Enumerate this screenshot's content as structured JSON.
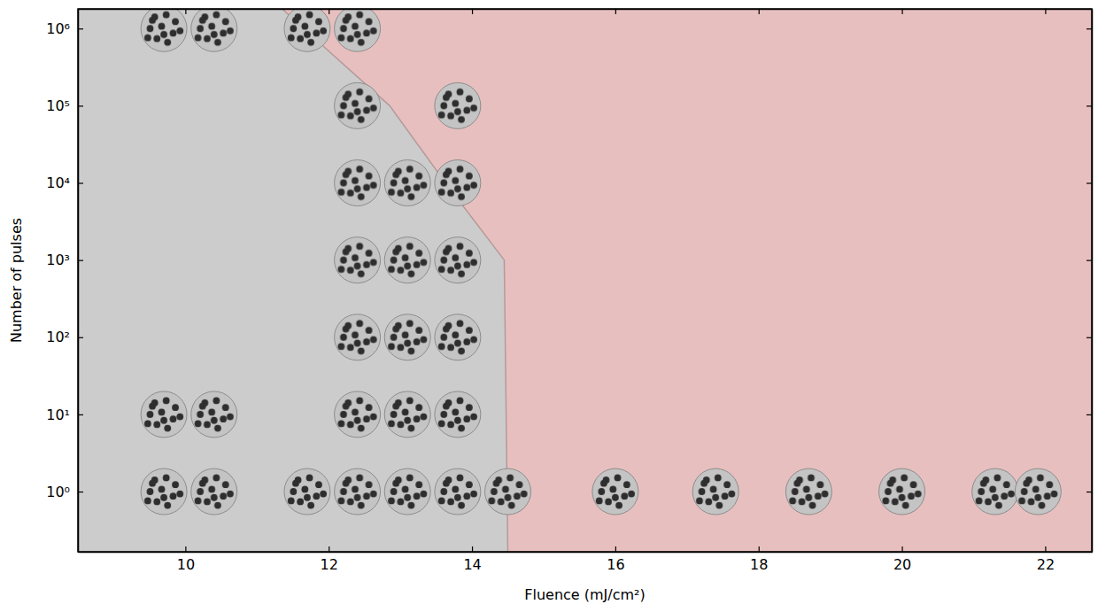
{
  "chart_data": {
    "type": "scatter",
    "color": "#e8bfbf",
    "x_label": "Fluence (mJ/cm²)",
    "y_label": "Number of pulses",
    "log": "y",
    "xlim": [
      8.5,
      22.65
    ],
    "ylim": [
      0.166,
      1800000
    ],
    "xticks": [
      10,
      12,
      14,
      16,
      18,
      20,
      22
    ],
    "yticks": [
      {
        "value": 1,
        "label": "10⁰"
      },
      {
        "value": 10,
        "label": "10¹"
      },
      {
        "value": 100,
        "label": "10²"
      },
      {
        "value": 1000,
        "label": "10³"
      },
      {
        "value": 10000,
        "label": "10⁴"
      },
      {
        "value": 100000,
        "label": "10⁵"
      },
      {
        "value": 1000000,
        "label": "10⁶"
      }
    ],
    "series": [
      {
        "type": "area",
        "color": "#cccccc",
        "x": [
          11.35,
          11.65,
          12.85,
          13.63,
          14.45,
          14.5
        ],
        "values": [
          1800000,
          1000000,
          100000,
          10000,
          1000,
          0.166
        ]
      },
      {
        "type": "scatter",
        "color": "#c4c4c4",
        "marker": "circle",
        "x": [
          9.7,
          10.4,
          11.7,
          12.4,
          12.4,
          13.8,
          12.4,
          13.1,
          13.8,
          12.4,
          13.1,
          13.8,
          12.4,
          13.1,
          13.8,
          9.7,
          10.4,
          12.4,
          13.1,
          13.8,
          9.7,
          10.4,
          11.7,
          12.4,
          13.1,
          13.8,
          14.5,
          16.0,
          17.4,
          18.7,
          20.0,
          21.3,
          21.9
        ],
        "values": [
          1000000,
          1000000,
          1000000,
          1000000,
          100000,
          100000,
          10000,
          10000,
          10000,
          1000,
          1000,
          1000,
          100,
          100,
          100,
          10,
          10,
          10,
          10,
          10,
          1,
          1,
          1,
          1,
          1,
          1,
          1,
          1,
          1,
          1,
          1,
          1,
          1
        ]
      }
    ]
  }
}
